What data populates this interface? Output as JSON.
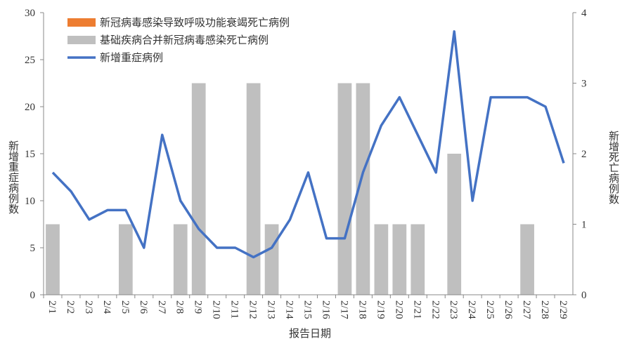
{
  "chart_data": {
    "type": "combo",
    "x_label": "报告日期",
    "y_label": "新增重症病例数",
    "y2_label": "新增死亡病例数",
    "categories": [
      "2/1",
      "2/2",
      "2/3",
      "2/4",
      "2/5",
      "2/6",
      "2/7",
      "2/8",
      "2/9",
      "2/10",
      "2/11",
      "2/12",
      "2/13",
      "2/14",
      "2/15",
      "2/16",
      "2/17",
      "2/18",
      "2/19",
      "2/20",
      "2/21",
      "2/22",
      "2/23",
      "2/24",
      "2/25",
      "2/26",
      "2/27",
      "2/28",
      "2/29"
    ],
    "series": [
      {
        "name": "新冠病毒感染导致呼吸功能衰竭死亡病例",
        "type": "bar",
        "axis": "y2",
        "color": "#ed7d31",
        "values": [
          0,
          0,
          0,
          0,
          0,
          0,
          0,
          0,
          0,
          0,
          0,
          0,
          0,
          0,
          0,
          0,
          0,
          0,
          0,
          0,
          0,
          0,
          0,
          0,
          0,
          0,
          0,
          0,
          0
        ]
      },
      {
        "name": "基础疾病合并新冠病毒感染死亡病例",
        "type": "bar",
        "axis": "y2",
        "color": "#bfbfbf",
        "values": [
          1,
          0,
          0,
          0,
          1,
          0,
          0,
          1,
          3,
          0,
          0,
          3,
          1,
          0,
          0,
          0,
          3,
          3,
          1,
          1,
          1,
          0,
          2,
          0,
          0,
          0,
          1,
          0,
          0
        ]
      },
      {
        "name": "新增重症病例",
        "type": "line",
        "color": "#4472c4",
        "values": [
          13,
          11,
          8,
          9,
          9,
          5,
          17,
          10,
          7,
          5,
          5,
          4,
          5,
          8,
          13,
          6,
          6,
          13,
          18,
          21,
          17,
          13,
          28,
          10,
          21,
          21,
          21,
          20,
          14
        ]
      }
    ],
    "ylim": [
      0,
      30
    ],
    "yticks": [
      0,
      5,
      10,
      15,
      20,
      25,
      30
    ],
    "y2lim": [
      0,
      4
    ],
    "y2ticks": [
      0,
      1,
      2,
      3,
      4
    ]
  }
}
